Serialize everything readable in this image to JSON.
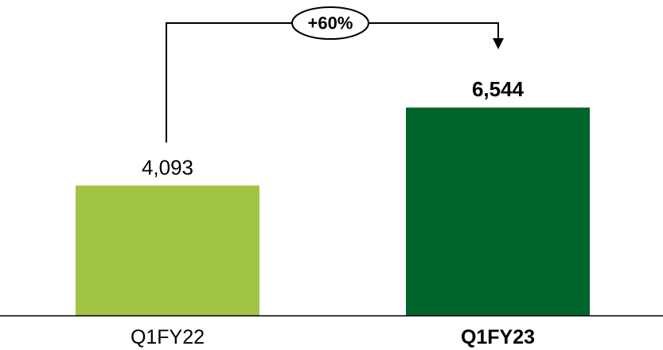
{
  "chart_data": {
    "type": "bar",
    "categories": [
      "Q1FY22",
      "Q1FY23"
    ],
    "values": [
      4093,
      6544
    ],
    "value_labels": [
      "4,093",
      "6,544"
    ],
    "highlight_index": 1,
    "colors": [
      "#a2c445",
      "#00642d"
    ],
    "growth_label": "+60%",
    "title": "",
    "xlabel": "",
    "ylabel": "",
    "ylim": [
      0,
      7875
    ],
    "grid": false,
    "legend": "none"
  }
}
